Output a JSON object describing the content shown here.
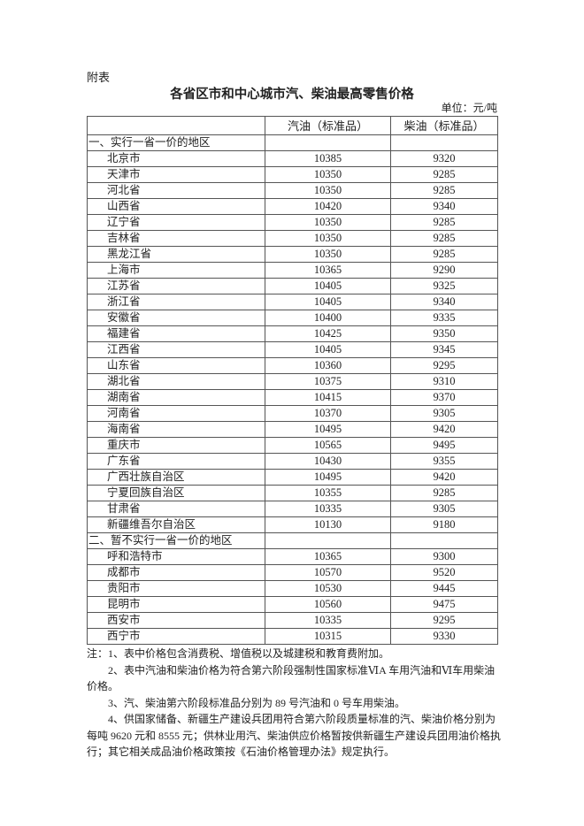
{
  "annex_label": "附表",
  "title": "各省区市和中心城市汽、柴油最高零售价格",
  "unit": "单位：元/吨",
  "columns": [
    "",
    "汽油（标准品）",
    "柴油（标准品）"
  ],
  "sections": [
    {
      "label": "一、实行一省一价的地区",
      "rows": [
        {
          "region": "北京市",
          "gasoline": "10385",
          "diesel": "9320"
        },
        {
          "region": "天津市",
          "gasoline": "10350",
          "diesel": "9285"
        },
        {
          "region": "河北省",
          "gasoline": "10350",
          "diesel": "9285"
        },
        {
          "region": "山西省",
          "gasoline": "10420",
          "diesel": "9340"
        },
        {
          "region": "辽宁省",
          "gasoline": "10350",
          "diesel": "9285"
        },
        {
          "region": "吉林省",
          "gasoline": "10350",
          "diesel": "9285"
        },
        {
          "region": "黑龙江省",
          "gasoline": "10350",
          "diesel": "9285"
        },
        {
          "region": "上海市",
          "gasoline": "10365",
          "diesel": "9290"
        },
        {
          "region": "江苏省",
          "gasoline": "10405",
          "diesel": "9325"
        },
        {
          "region": "浙江省",
          "gasoline": "10405",
          "diesel": "9340"
        },
        {
          "region": "安徽省",
          "gasoline": "10400",
          "diesel": "9335"
        },
        {
          "region": "福建省",
          "gasoline": "10425",
          "diesel": "9350"
        },
        {
          "region": "江西省",
          "gasoline": "10405",
          "diesel": "9345"
        },
        {
          "region": "山东省",
          "gasoline": "10360",
          "diesel": "9295"
        },
        {
          "region": "湖北省",
          "gasoline": "10375",
          "diesel": "9310"
        },
        {
          "region": "湖南省",
          "gasoline": "10415",
          "diesel": "9370"
        },
        {
          "region": "河南省",
          "gasoline": "10370",
          "diesel": "9305"
        },
        {
          "region": "海南省",
          "gasoline": "10495",
          "diesel": "9420"
        },
        {
          "region": "重庆市",
          "gasoline": "10565",
          "diesel": "9495"
        },
        {
          "region": "广东省",
          "gasoline": "10430",
          "diesel": "9355"
        },
        {
          "region": "广西壮族自治区",
          "gasoline": "10495",
          "diesel": "9420"
        },
        {
          "region": "宁夏回族自治区",
          "gasoline": "10355",
          "diesel": "9285"
        },
        {
          "region": "甘肃省",
          "gasoline": "10335",
          "diesel": "9305"
        },
        {
          "region": "新疆维吾尔自治区",
          "gasoline": "10130",
          "diesel": "9180"
        }
      ]
    },
    {
      "label": "二、暂不实行一省一价的地区",
      "rows": [
        {
          "region": "呼和浩特市",
          "gasoline": "10365",
          "diesel": "9300"
        },
        {
          "region": "成都市",
          "gasoline": "10570",
          "diesel": "9520"
        },
        {
          "region": "贵阳市",
          "gasoline": "10530",
          "diesel": "9445"
        },
        {
          "region": "昆明市",
          "gasoline": "10560",
          "diesel": "9475"
        },
        {
          "region": "西安市",
          "gasoline": "10335",
          "diesel": "9295"
        },
        {
          "region": "西宁市",
          "gasoline": "10315",
          "diesel": "9330"
        }
      ]
    }
  ],
  "notes": [
    "注：1、表中价格包含消费税、增值税以及城建税和教育费附加。",
    "2、表中汽油和柴油价格为符合第六阶段强制性国家标准ⅥA 车用汽油和Ⅵ车用柴油价格。",
    "3、汽、柴油第六阶段标准品分别为 89 号汽油和 0 号车用柴油。",
    "4、供国家储备、新疆生产建设兵团用符合第六阶段质量标准的汽、柴油价格分别为每吨 9620 元和 8555 元；供林业用汽、柴油供应价格暂按供新疆生产建设兵团用油价格执行；其它相关成品油价格政策按《石油价格管理办法》规定执行。"
  ]
}
